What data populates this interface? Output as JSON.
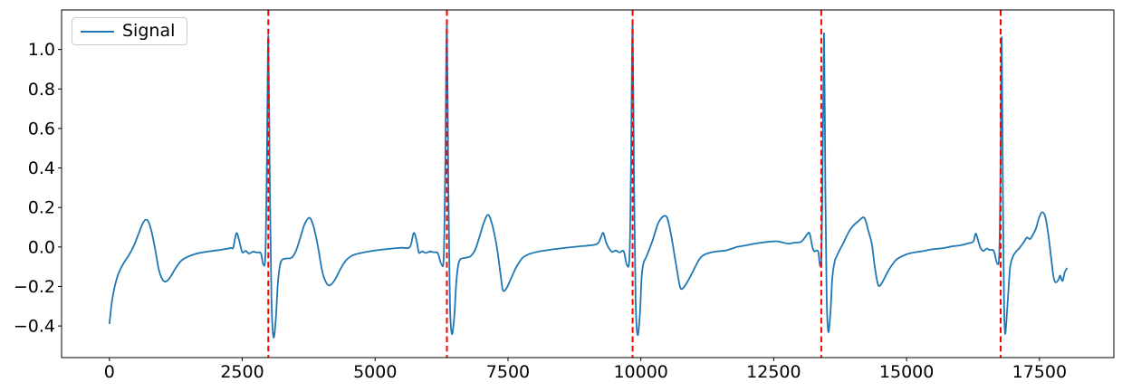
{
  "chart_data": {
    "type": "line",
    "title": "",
    "xlabel": "",
    "ylabel": "",
    "xlim": [
      -900,
      18900
    ],
    "ylim": [
      -0.56,
      1.2
    ],
    "x_ticks": [
      0,
      2500,
      5000,
      7500,
      10000,
      12500,
      15000,
      17500
    ],
    "y_ticks": [
      -0.4,
      -0.2,
      0.0,
      0.2,
      0.4,
      0.6,
      0.8,
      1.0
    ],
    "grid": false,
    "legend": {
      "label": "Signal",
      "position": "upper left"
    },
    "vlines": {
      "positions": [
        2990,
        6350,
        9845,
        13395,
        16770
      ],
      "color": "#ff0000",
      "style": "dashed"
    },
    "series": [
      {
        "name": "Signal",
        "color": "#1f77b4",
        "keypoints": [
          [
            0,
            -0.39
          ],
          [
            45,
            -0.28
          ],
          [
            100,
            -0.2
          ],
          [
            170,
            -0.135
          ],
          [
            260,
            -0.085
          ],
          [
            360,
            -0.045
          ],
          [
            450,
            0.0
          ],
          [
            540,
            0.06
          ],
          [
            620,
            0.115
          ],
          [
            680,
            0.138
          ],
          [
            740,
            0.125
          ],
          [
            800,
            0.07
          ],
          [
            860,
            -0.01
          ],
          [
            930,
            -0.115
          ],
          [
            1000,
            -0.165
          ],
          [
            1060,
            -0.175
          ],
          [
            1140,
            -0.155
          ],
          [
            1240,
            -0.11
          ],
          [
            1350,
            -0.07
          ],
          [
            1470,
            -0.05
          ],
          [
            1620,
            -0.035
          ],
          [
            1800,
            -0.025
          ],
          [
            2000,
            -0.018
          ],
          [
            2150,
            -0.012
          ],
          [
            2290,
            -0.005
          ],
          [
            2330,
            -0.002
          ],
          [
            2390,
            0.07
          ],
          [
            2445,
            0.03
          ],
          [
            2475,
            -0.005
          ],
          [
            2505,
            -0.028
          ],
          [
            2565,
            -0.02
          ],
          [
            2625,
            -0.033
          ],
          [
            2700,
            -0.024
          ],
          [
            2780,
            -0.028
          ],
          [
            2850,
            -0.032
          ],
          [
            2895,
            -0.088
          ],
          [
            2935,
            -0.04
          ],
          [
            2962,
            0.4
          ],
          [
            2990,
            1.07
          ],
          [
            3018,
            0.35
          ],
          [
            3048,
            -0.25
          ],
          [
            3085,
            -0.455
          ],
          [
            3130,
            -0.37
          ],
          [
            3168,
            -0.19
          ],
          [
            3205,
            -0.1
          ],
          [
            3245,
            -0.066
          ],
          [
            3330,
            -0.058
          ],
          [
            3425,
            -0.055
          ],
          [
            3510,
            -0.02
          ],
          [
            3590,
            0.045
          ],
          [
            3672,
            0.115
          ],
          [
            3765,
            0.148
          ],
          [
            3845,
            0.1
          ],
          [
            3925,
            0.0
          ],
          [
            4010,
            -0.13
          ],
          [
            4090,
            -0.185
          ],
          [
            4155,
            -0.193
          ],
          [
            4245,
            -0.165
          ],
          [
            4340,
            -0.115
          ],
          [
            4445,
            -0.07
          ],
          [
            4560,
            -0.045
          ],
          [
            4705,
            -0.032
          ],
          [
            4900,
            -0.022
          ],
          [
            5100,
            -0.014
          ],
          [
            5310,
            -0.008
          ],
          [
            5500,
            -0.004
          ],
          [
            5655,
            0.0
          ],
          [
            5727,
            0.071
          ],
          [
            5785,
            0.025
          ],
          [
            5822,
            -0.028
          ],
          [
            5885,
            -0.022
          ],
          [
            5955,
            -0.03
          ],
          [
            6030,
            -0.023
          ],
          [
            6110,
            -0.027
          ],
          [
            6180,
            -0.032
          ],
          [
            6248,
            -0.088
          ],
          [
            6292,
            -0.04
          ],
          [
            6321,
            0.45
          ],
          [
            6350,
            1.12
          ],
          [
            6378,
            0.3
          ],
          [
            6407,
            -0.28
          ],
          [
            6442,
            -0.44
          ],
          [
            6488,
            -0.355
          ],
          [
            6524,
            -0.19
          ],
          [
            6562,
            -0.095
          ],
          [
            6605,
            -0.062
          ],
          [
            6695,
            -0.055
          ],
          [
            6790,
            -0.048
          ],
          [
            6880,
            -0.015
          ],
          [
            6962,
            0.05
          ],
          [
            7042,
            0.12
          ],
          [
            7125,
            0.163
          ],
          [
            7205,
            0.11
          ],
          [
            7290,
            0.0
          ],
          [
            7360,
            -0.14
          ],
          [
            7404,
            -0.218
          ],
          [
            7470,
            -0.21
          ],
          [
            7560,
            -0.158
          ],
          [
            7660,
            -0.1
          ],
          [
            7775,
            -0.055
          ],
          [
            7905,
            -0.035
          ],
          [
            8100,
            -0.022
          ],
          [
            8350,
            -0.012
          ],
          [
            8565,
            -0.005
          ],
          [
            8800,
            0.002
          ],
          [
            9000,
            0.007
          ],
          [
            9140,
            0.012
          ],
          [
            9205,
            0.022
          ],
          [
            9250,
            0.05
          ],
          [
            9294,
            0.071
          ],
          [
            9350,
            0.02
          ],
          [
            9398,
            -0.006
          ],
          [
            9460,
            -0.025
          ],
          [
            9530,
            -0.018
          ],
          [
            9600,
            -0.028
          ],
          [
            9678,
            -0.022
          ],
          [
            9737,
            -0.091
          ],
          [
            9788,
            -0.04
          ],
          [
            9816,
            0.45
          ],
          [
            9845,
            1.13
          ],
          [
            9873,
            0.3
          ],
          [
            9902,
            -0.27
          ],
          [
            9937,
            -0.445
          ],
          [
            9980,
            -0.35
          ],
          [
            10016,
            -0.15
          ],
          [
            10052,
            -0.08
          ],
          [
            10106,
            -0.048
          ],
          [
            10220,
            0.032
          ],
          [
            10335,
            0.125
          ],
          [
            10475,
            0.156
          ],
          [
            10562,
            0.07
          ],
          [
            10645,
            -0.06
          ],
          [
            10732,
            -0.195
          ],
          [
            10787,
            -0.21
          ],
          [
            10880,
            -0.175
          ],
          [
            10987,
            -0.12
          ],
          [
            11128,
            -0.052
          ],
          [
            11300,
            -0.029
          ],
          [
            11450,
            -0.022
          ],
          [
            11610,
            -0.017
          ],
          [
            11811,
            0.0
          ],
          [
            12010,
            0.01
          ],
          [
            12209,
            0.02
          ],
          [
            12400,
            0.026
          ],
          [
            12550,
            0.029
          ],
          [
            12680,
            0.022
          ],
          [
            12777,
            0.017
          ],
          [
            12900,
            0.022
          ],
          [
            13005,
            0.025
          ],
          [
            13070,
            0.042
          ],
          [
            13130,
            0.065
          ],
          [
            13176,
            0.068
          ],
          [
            13228,
            0.0
          ],
          [
            13261,
            -0.022
          ],
          [
            13308,
            -0.018
          ],
          [
            13342,
            -0.028
          ],
          [
            13372,
            -0.095
          ],
          [
            13400,
            -0.03
          ],
          [
            13424,
            0.5
          ],
          [
            13448,
            1.08
          ],
          [
            13472,
            0.3
          ],
          [
            13497,
            -0.26
          ],
          [
            13527,
            -0.43
          ],
          [
            13568,
            -0.33
          ],
          [
            13604,
            -0.15
          ],
          [
            13650,
            -0.07
          ],
          [
            13692,
            -0.043
          ],
          [
            13750,
            -0.01
          ],
          [
            13805,
            0.017
          ],
          [
            13900,
            0.07
          ],
          [
            13977,
            0.102
          ],
          [
            14090,
            0.13
          ],
          [
            14202,
            0.148
          ],
          [
            14282,
            0.08
          ],
          [
            14345,
            0.017
          ],
          [
            14402,
            -0.1
          ],
          [
            14458,
            -0.186
          ],
          [
            14502,
            -0.195
          ],
          [
            14580,
            -0.16
          ],
          [
            14657,
            -0.12
          ],
          [
            14742,
            -0.085
          ],
          [
            14828,
            -0.06
          ],
          [
            15000,
            -0.037
          ],
          [
            15150,
            -0.027
          ],
          [
            15283,
            -0.022
          ],
          [
            15480,
            -0.012
          ],
          [
            15681,
            -0.006
          ],
          [
            15852,
            0.003
          ],
          [
            16022,
            0.009
          ],
          [
            16150,
            0.018
          ],
          [
            16250,
            0.026
          ],
          [
            16280,
            0.05
          ],
          [
            16306,
            0.067
          ],
          [
            16350,
            0.03
          ],
          [
            16391,
            -0.005
          ],
          [
            16448,
            -0.02
          ],
          [
            16505,
            -0.008
          ],
          [
            16562,
            -0.015
          ],
          [
            16640,
            -0.02
          ],
          [
            16704,
            -0.083
          ],
          [
            16744,
            -0.03
          ],
          [
            16767,
            0.4
          ],
          [
            16790,
            1.06
          ],
          [
            16814,
            0.2
          ],
          [
            16834,
            -0.3
          ],
          [
            16855,
            -0.44
          ],
          [
            16890,
            -0.33
          ],
          [
            16916,
            -0.22
          ],
          [
            16950,
            -0.097
          ],
          [
            17007,
            -0.045
          ],
          [
            17065,
            -0.022
          ],
          [
            17122,
            -0.006
          ],
          [
            17207,
            0.025
          ],
          [
            17264,
            0.048
          ],
          [
            17322,
            0.04
          ],
          [
            17378,
            0.063
          ],
          [
            17435,
            0.094
          ],
          [
            17493,
            0.148
          ],
          [
            17549,
            0.176
          ],
          [
            17606,
            0.156
          ],
          [
            17663,
            0.071
          ],
          [
            17719,
            -0.052
          ],
          [
            17765,
            -0.152
          ],
          [
            17805,
            -0.179
          ],
          [
            17862,
            -0.163
          ],
          [
            17890,
            -0.145
          ],
          [
            17935,
            -0.172
          ],
          [
            17975,
            -0.129
          ],
          [
            18020,
            -0.106
          ]
        ]
      }
    ]
  },
  "colors": {
    "signal": "#1f77b4",
    "vline": "#ff0000",
    "spine": "#000000",
    "legend_border": "#cccccc",
    "background": "#ffffff"
  }
}
